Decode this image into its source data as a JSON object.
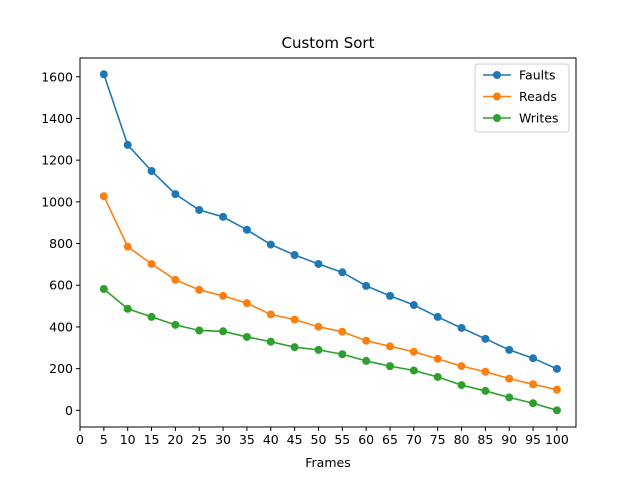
{
  "chart_data": {
    "type": "line",
    "title": "Custom Sort",
    "xlabel": "Frames",
    "ylabel": "",
    "xlim": [
      0,
      104
    ],
    "ylim": [
      -80,
      1690
    ],
    "xticks": [
      0,
      5,
      10,
      15,
      20,
      25,
      30,
      35,
      40,
      45,
      50,
      55,
      60,
      65,
      70,
      75,
      80,
      85,
      90,
      95,
      100
    ],
    "yticks": [
      0,
      200,
      400,
      600,
      800,
      1000,
      1200,
      1400,
      1600
    ],
    "grid": false,
    "legend": "top-right",
    "x": [
      5,
      10,
      15,
      20,
      25,
      30,
      35,
      40,
      45,
      50,
      55,
      60,
      65,
      70,
      75,
      80,
      85,
      90,
      95,
      100
    ],
    "series": [
      {
        "name": "Faults",
        "color": "#1f77b4",
        "values": [
          1612,
          1273,
          1148,
          1037,
          961,
          928,
          866,
          795,
          745,
          702,
          662,
          597,
          549,
          505,
          448,
          395,
          343,
          290,
          250,
          199
        ]
      },
      {
        "name": "Reads",
        "color": "#ff7f0e",
        "values": [
          1027,
          785,
          702,
          626,
          578,
          549,
          514,
          460,
          435,
          401,
          377,
          334,
          307,
          281,
          247,
          212,
          185,
          152,
          125,
          99
        ]
      },
      {
        "name": "Writes",
        "color": "#2ca02c",
        "values": [
          582,
          487,
          448,
          410,
          383,
          379,
          352,
          329,
          303,
          290,
          269,
          237,
          212,
          191,
          160,
          121,
          93,
          62,
          34,
          0
        ]
      }
    ]
  }
}
